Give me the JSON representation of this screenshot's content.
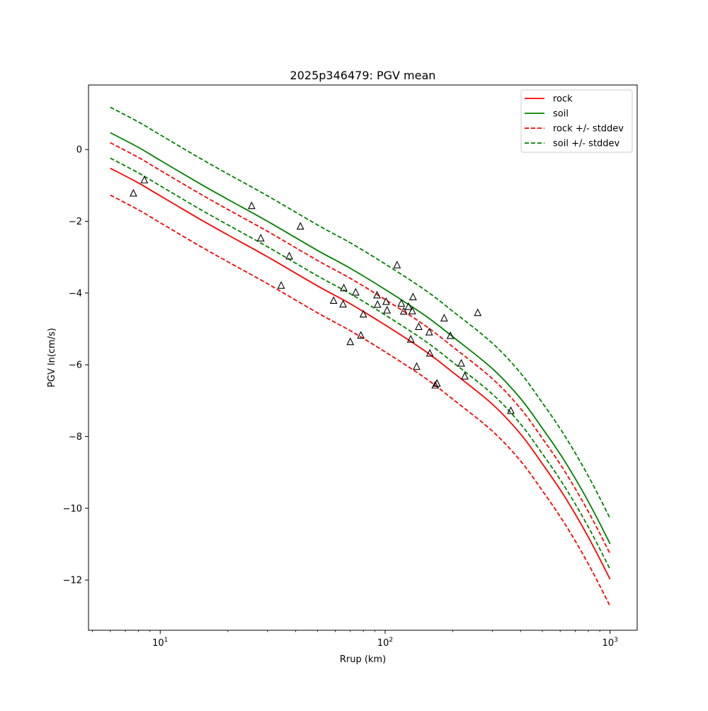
{
  "chart_data": {
    "type": "line",
    "title": "2025p346479: PGV mean",
    "xlabel": "Rrup (km)",
    "ylabel": "PGV ln(cm/s)",
    "x_scale": "log",
    "xlim": [
      4.8,
      1320
    ],
    "ylim": [
      -13.4,
      1.8
    ],
    "grid": false,
    "legend_position": "top-right",
    "x_ticks": [
      {
        "value": 10,
        "base": "10",
        "exp": "1"
      },
      {
        "value": 100,
        "base": "10",
        "exp": "2"
      },
      {
        "value": 1000,
        "base": "10",
        "exp": "3"
      }
    ],
    "y_ticks": [
      {
        "value": 0,
        "label": "0"
      },
      {
        "value": -2,
        "label": "−2"
      },
      {
        "value": -4,
        "label": "−4"
      },
      {
        "value": -6,
        "label": "−6"
      },
      {
        "value": -8,
        "label": "−8"
      },
      {
        "value": -10,
        "label": "−10"
      },
      {
        "value": -12,
        "label": "−12"
      }
    ],
    "x": [
      6,
      8,
      10,
      15,
      20,
      30,
      50,
      70,
      100,
      150,
      200,
      300,
      400,
      500,
      600,
      700,
      800,
      900,
      1000
    ],
    "series": [
      {
        "name": "rock",
        "color": "#ff0000",
        "dash": "solid",
        "values": [
          -0.52,
          -0.93,
          -1.29,
          -1.94,
          -2.38,
          -2.99,
          -3.8,
          -4.3,
          -4.89,
          -5.61,
          -6.21,
          -7.1,
          -7.93,
          -8.76,
          -9.48,
          -10.16,
          -10.8,
          -11.41,
          -11.98
        ]
      },
      {
        "name": "soil",
        "color": "#008000",
        "dash": "solid",
        "values": [
          0.47,
          0.06,
          -0.3,
          -0.95,
          -1.39,
          -2.0,
          -2.81,
          -3.31,
          -3.9,
          -4.62,
          -5.22,
          -6.11,
          -6.94,
          -7.77,
          -8.49,
          -9.17,
          -9.81,
          -10.42,
          -10.99
        ]
      },
      {
        "name": "rock +/- stddev",
        "color": "#ff0000",
        "dash": "dashed",
        "values": [
          0.19,
          -0.22,
          -0.58,
          -1.23,
          -1.67,
          -2.28,
          -3.09,
          -3.59,
          -4.18,
          -4.9,
          -5.5,
          -6.39,
          -7.22,
          -8.05,
          -8.77,
          -9.45,
          -10.09,
          -10.7,
          -11.27
        ]
      },
      {
        "name": "",
        "color": "#ff0000",
        "dash": "dashed",
        "values": [
          -1.27,
          -1.68,
          -2.04,
          -2.69,
          -3.13,
          -3.74,
          -4.55,
          -5.05,
          -5.64,
          -6.36,
          -6.96,
          -7.85,
          -8.68,
          -9.51,
          -10.23,
          -10.91,
          -11.55,
          -12.16,
          -12.73
        ]
      },
      {
        "name": "soil +/- stddev",
        "color": "#008000",
        "dash": "dashed",
        "values": [
          1.18,
          0.77,
          0.41,
          -0.24,
          -0.68,
          -1.29,
          -2.1,
          -2.6,
          -3.19,
          -3.91,
          -4.51,
          -5.4,
          -6.23,
          -7.06,
          -7.78,
          -8.46,
          -9.1,
          -9.71,
          -10.28
        ]
      },
      {
        "name": "",
        "color": "#008000",
        "dash": "dashed",
        "values": [
          -0.24,
          -0.65,
          -1.01,
          -1.66,
          -2.1,
          -2.71,
          -3.52,
          -4.02,
          -4.61,
          -5.33,
          -5.93,
          -6.82,
          -7.65,
          -8.48,
          -9.2,
          -9.88,
          -10.52,
          -11.13,
          -11.7
        ]
      }
    ],
    "observations": [
      {
        "x": 7.6,
        "y": -1.22
      },
      {
        "x": 8.5,
        "y": -0.85
      },
      {
        "x": 25.5,
        "y": -1.57
      },
      {
        "x": 28,
        "y": -2.47
      },
      {
        "x": 34.5,
        "y": -3.79
      },
      {
        "x": 37.5,
        "y": -2.97
      },
      {
        "x": 42,
        "y": -2.14
      },
      {
        "x": 59,
        "y": -4.21
      },
      {
        "x": 65,
        "y": -4.31
      },
      {
        "x": 65.5,
        "y": -3.86
      },
      {
        "x": 70,
        "y": -5.36
      },
      {
        "x": 74,
        "y": -3.98
      },
      {
        "x": 78,
        "y": -5.18
      },
      {
        "x": 80,
        "y": -4.59
      },
      {
        "x": 92,
        "y": -4.06
      },
      {
        "x": 92.5,
        "y": -4.32
      },
      {
        "x": 101,
        "y": -4.24
      },
      {
        "x": 102,
        "y": -4.48
      },
      {
        "x": 113,
        "y": -3.22
      },
      {
        "x": 118,
        "y": -4.29
      },
      {
        "x": 121,
        "y": -4.51
      },
      {
        "x": 127,
        "y": -4.38
      },
      {
        "x": 130,
        "y": -5.29
      },
      {
        "x": 132,
        "y": -4.5
      },
      {
        "x": 133,
        "y": -4.11
      },
      {
        "x": 138,
        "y": -6.05
      },
      {
        "x": 141,
        "y": -4.94
      },
      {
        "x": 157,
        "y": -5.09
      },
      {
        "x": 158,
        "y": -5.68
      },
      {
        "x": 167,
        "y": -6.57
      },
      {
        "x": 170,
        "y": -6.52
      },
      {
        "x": 183,
        "y": -4.7
      },
      {
        "x": 195,
        "y": -5.19
      },
      {
        "x": 218,
        "y": -5.96
      },
      {
        "x": 226,
        "y": -6.32
      },
      {
        "x": 258,
        "y": -4.55
      },
      {
        "x": 362,
        "y": -7.28
      }
    ]
  }
}
